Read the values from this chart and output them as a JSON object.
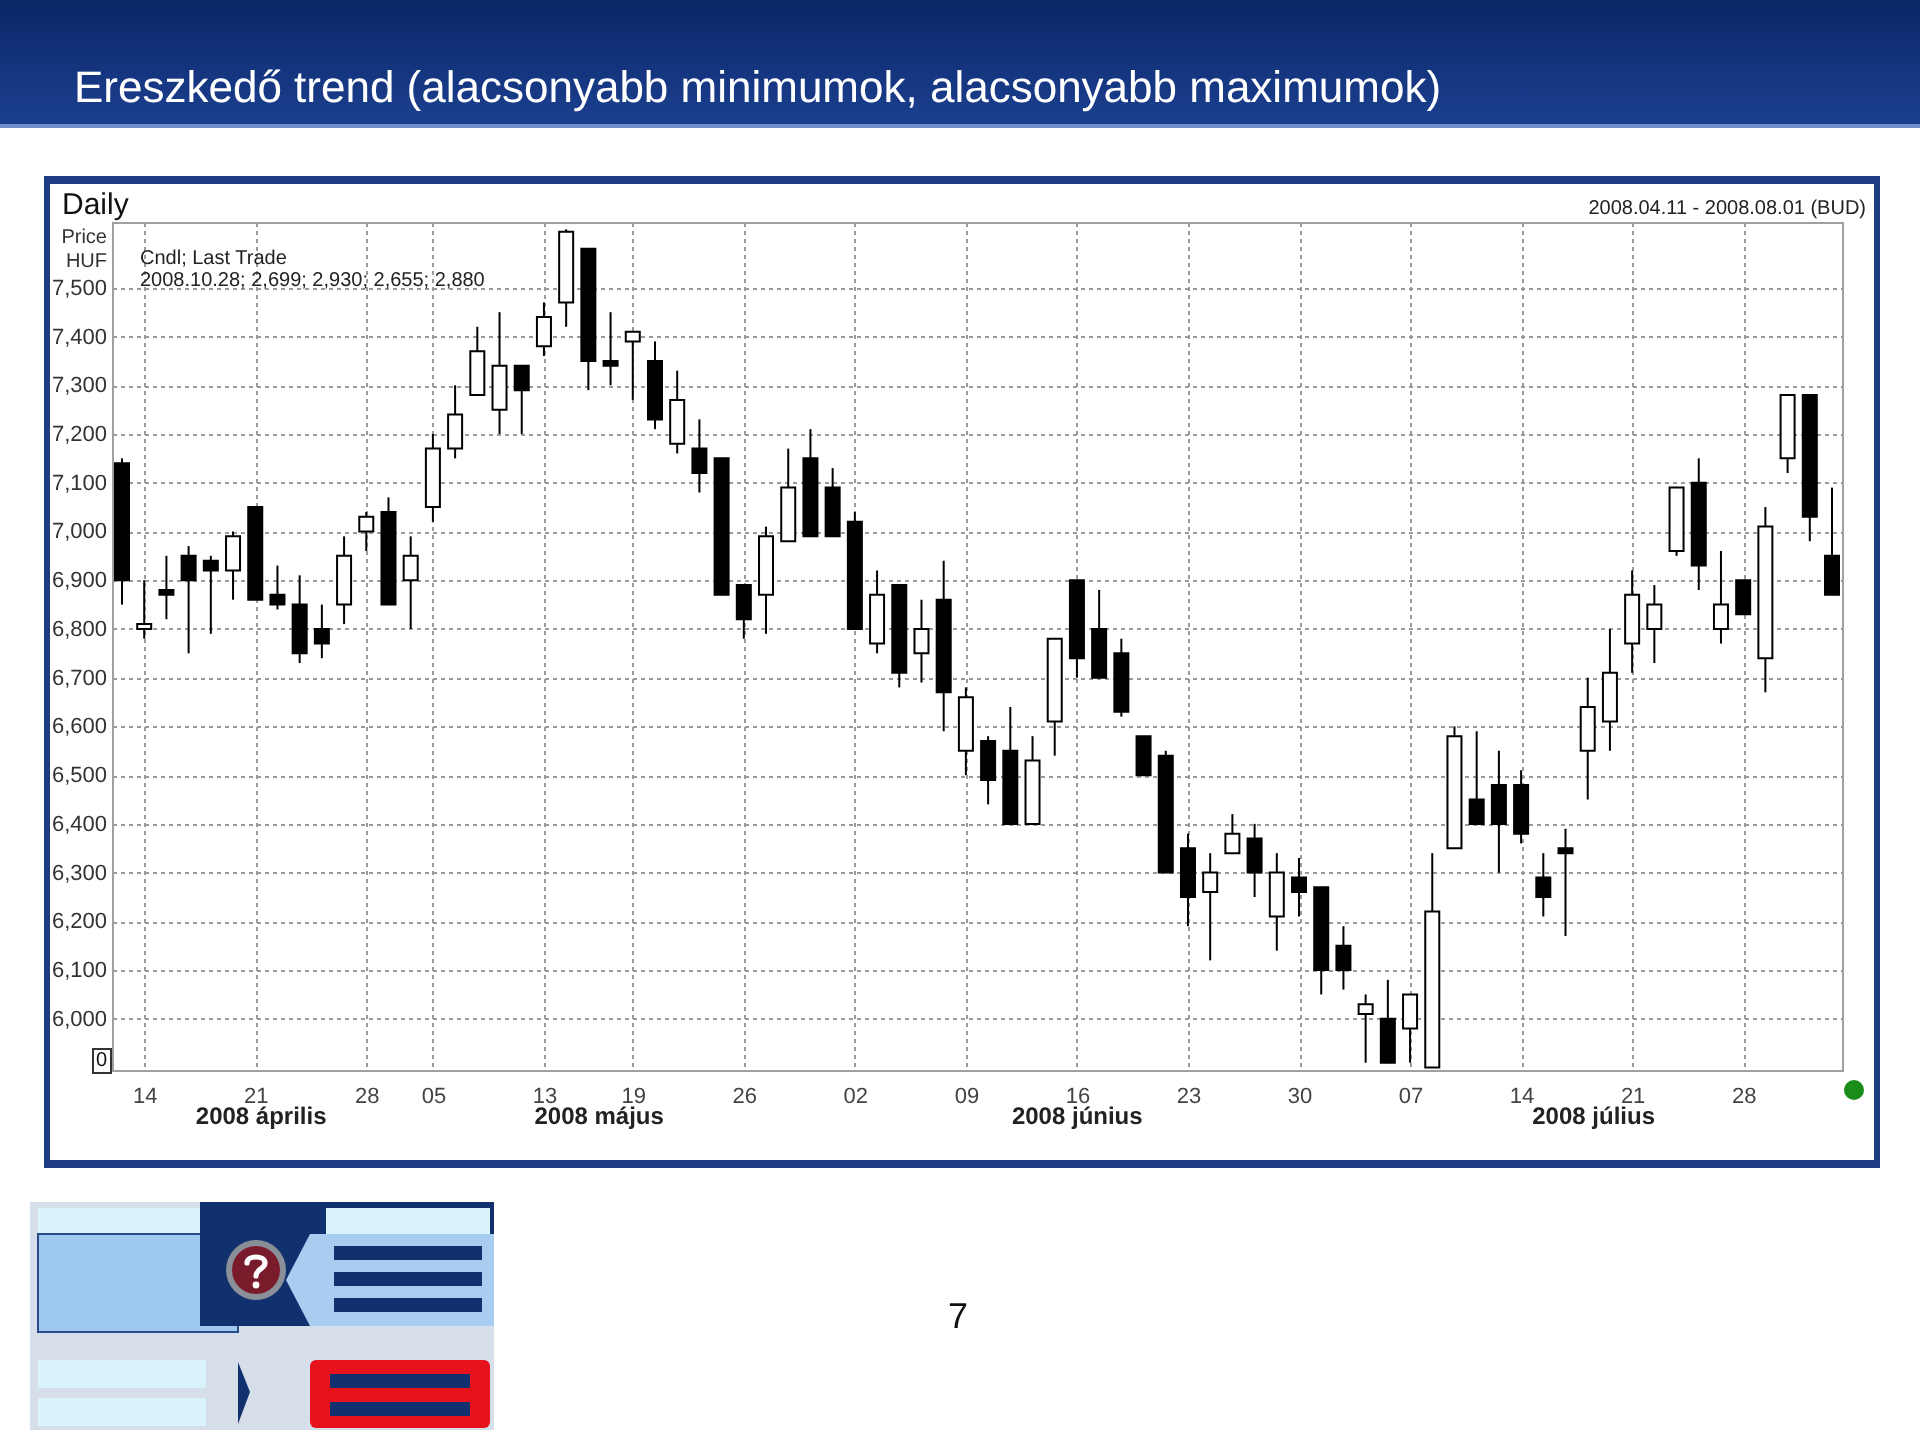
{
  "chart_data": {
    "type": "candlestick",
    "title": "Ereszkedő trend (alacsonyabb minimumok, alacsonyabb maximumok)",
    "subtitle": "Daily",
    "ylabel": "Price\nHUF",
    "annotations": [
      "Cndl; Last Trade",
      "2008.10.28; 2,699; 2,930; 2,655; 2,880",
      "2008.04.11 - 2008.08.01 (BUD)",
      "2008 április",
      "2008 május",
      "2008 június",
      "2008 július",
      "7",
      "0"
    ],
    "categories": [
      null,
      "14",
      null,
      null,
      null,
      null,
      "21",
      null,
      null,
      null,
      null,
      "28",
      null,
      null,
      "05",
      null,
      null,
      null,
      null,
      "13",
      null,
      null,
      null,
      "19",
      null,
      null,
      null,
      null,
      "26",
      null,
      null,
      null,
      null,
      "02",
      null,
      null,
      null,
      null,
      "09",
      null,
      null,
      null,
      null,
      "16",
      null,
      null,
      null,
      null,
      "23",
      null,
      null,
      null,
      null,
      "30",
      null,
      null,
      null,
      null,
      "07",
      null,
      null,
      null,
      null,
      "14",
      null,
      null,
      null,
      null,
      "21",
      null,
      null,
      null,
      null,
      "28",
      null,
      null,
      null,
      null
    ],
    "ohlc": [
      [
        7140,
        7150,
        6850,
        6900
      ],
      [
        6800,
        6900,
        6780,
        6810
      ],
      [
        6880,
        6950,
        6820,
        6870
      ],
      [
        6950,
        6970,
        6750,
        6900
      ],
      [
        6940,
        6950,
        6790,
        6920
      ],
      [
        6920,
        7000,
        6860,
        6990
      ],
      [
        7050,
        7050,
        6860,
        6860
      ],
      [
        6870,
        6930,
        6840,
        6850
      ],
      [
        6850,
        6910,
        6730,
        6750
      ],
      [
        6800,
        6850,
        6740,
        6770
      ],
      [
        6850,
        6990,
        6810,
        6950
      ],
      [
        7000,
        7040,
        6960,
        7030
      ],
      [
        7040,
        7070,
        6850,
        6850
      ],
      [
        6900,
        6990,
        6800,
        6950
      ],
      [
        7050,
        7200,
        7020,
        7170
      ],
      [
        7170,
        7300,
        7150,
        7240
      ],
      [
        7280,
        7420,
        7280,
        7370
      ],
      [
        7250,
        7450,
        7200,
        7340
      ],
      [
        7340,
        7340,
        7200,
        7290
      ],
      [
        7380,
        7470,
        7360,
        7440
      ],
      [
        7470,
        7620,
        7420,
        7615
      ],
      [
        7580,
        7580,
        7290,
        7350
      ],
      [
        7350,
        7450,
        7300,
        7340
      ],
      [
        7390,
        7410,
        7270,
        7410
      ],
      [
        7350,
        7390,
        7210,
        7230
      ],
      [
        7180,
        7330,
        7160,
        7270
      ],
      [
        7170,
        7230,
        7080,
        7120
      ],
      [
        7150,
        7150,
        6870,
        6870
      ],
      [
        6890,
        6890,
        6780,
        6820
      ],
      [
        6870,
        7010,
        6790,
        6990
      ],
      [
        6980,
        7170,
        6980,
        7090
      ],
      [
        7150,
        7210,
        6990,
        6990
      ],
      [
        7090,
        7130,
        6990,
        6990
      ],
      [
        7020,
        7040,
        6800,
        6800
      ],
      [
        6770,
        6920,
        6750,
        6870
      ],
      [
        6890,
        6890,
        6680,
        6710
      ],
      [
        6750,
        6860,
        6690,
        6800
      ],
      [
        6860,
        6940,
        6590,
        6670
      ],
      [
        6550,
        6680,
        6500,
        6660
      ],
      [
        6570,
        6580,
        6440,
        6490
      ],
      [
        6550,
        6640,
        6400,
        6400
      ],
      [
        6400,
        6580,
        6400,
        6530
      ],
      [
        6610,
        6780,
        6540,
        6780
      ],
      [
        6900,
        6900,
        6700,
        6740
      ],
      [
        6800,
        6880,
        6700,
        6700
      ],
      [
        6750,
        6780,
        6620,
        6630
      ],
      [
        6580,
        6580,
        6500,
        6500
      ],
      [
        6540,
        6550,
        6300,
        6300
      ],
      [
        6350,
        6380,
        6190,
        6250
      ],
      [
        6260,
        6340,
        6120,
        6300
      ],
      [
        6340,
        6420,
        6340,
        6380
      ],
      [
        6370,
        6400,
        6250,
        6300
      ],
      [
        6210,
        6340,
        6140,
        6300
      ],
      [
        6290,
        6330,
        6210,
        6260
      ],
      [
        6270,
        6270,
        6050,
        6100
      ],
      [
        6150,
        6190,
        6060,
        6100
      ],
      [
        6010,
        6050,
        5910,
        6030
      ],
      [
        6000,
        6080,
        5910,
        5910
      ],
      [
        5980,
        6050,
        5910,
        6050
      ],
      [
        5900,
        6340,
        5900,
        6220
      ],
      [
        6350,
        6600,
        6350,
        6580
      ],
      [
        6450,
        6590,
        6400,
        6400
      ],
      [
        6480,
        6550,
        6300,
        6400
      ],
      [
        6480,
        6510,
        6360,
        6380
      ],
      [
        6290,
        6340,
        6210,
        6250
      ],
      [
        6350,
        6390,
        6170,
        6340
      ],
      [
        6550,
        6700,
        6450,
        6640
      ],
      [
        6610,
        6800,
        6550,
        6710
      ],
      [
        6770,
        6920,
        6710,
        6870
      ],
      [
        6800,
        6890,
        6730,
        6850
      ],
      [
        6960,
        7090,
        6950,
        7090
      ],
      [
        7100,
        7150,
        6880,
        6930
      ],
      [
        6800,
        6960,
        6770,
        6850
      ],
      [
        6900,
        6900,
        6830,
        6830
      ],
      [
        6740,
        7050,
        6670,
        7010
      ],
      [
        7150,
        7280,
        7120,
        7280
      ],
      [
        7280,
        7280,
        6980,
        7030
      ],
      [
        6950,
        7090,
        6870,
        6870
      ]
    ],
    "color": "#000000",
    "ylim": [
      5895,
      7635
    ],
    "yticks": [
      {
        "value": 6000,
        "label": "6,000"
      },
      {
        "value": 6100,
        "label": "6,100"
      },
      {
        "value": 6200,
        "label": "6,200"
      },
      {
        "value": 6300,
        "label": "6,300"
      },
      {
        "value": 6400,
        "label": "6,400"
      },
      {
        "value": 6500,
        "label": "6,500"
      },
      {
        "value": 6600,
        "label": "6,600"
      },
      {
        "value": 6700,
        "label": "6,700"
      },
      {
        "value": 6800,
        "label": "6,800"
      },
      {
        "value": 6900,
        "label": "6,900"
      },
      {
        "value": 7000,
        "label": "7,000"
      },
      {
        "value": 7100,
        "label": "7,100"
      },
      {
        "value": 7200,
        "label": "7,200"
      },
      {
        "value": 7300,
        "label": "7,300"
      },
      {
        "value": 7400,
        "label": "7,400"
      },
      {
        "value": 7500,
        "label": "7,500"
      }
    ],
    "grid": true
  }
}
